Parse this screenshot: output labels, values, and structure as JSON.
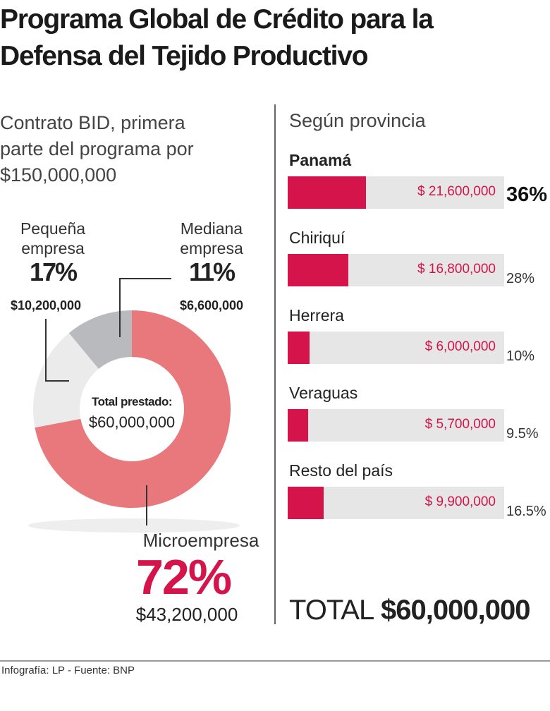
{
  "title": "Programa Global de Crédito para la Defensa del Tejido Productivo",
  "source": "Infografía: LP - Fuente: BNP",
  "chart_data": [
    {
      "type": "pie",
      "subtitle": "Contrato BID, primera parte del programa por $150,000,000",
      "categories": [
        "Microempresa",
        "Pequeña empresa",
        "Mediana empresa"
      ],
      "values": [
        72,
        17,
        11
      ],
      "value_labels": [
        "72%",
        "17%",
        "11%"
      ],
      "amounts": [
        43200000,
        10200000,
        6600000
      ],
      "amount_labels": [
        "$43,200,000",
        "$10,200,000",
        "$6,600,000"
      ],
      "colors": [
        "#e8787c",
        "#ebebeb",
        "#b9babe"
      ],
      "center_title": "Total prestado:",
      "center_text": "$60,000,000"
    },
    {
      "type": "bar",
      "title": "Según provincia",
      "categories": [
        "Panamá",
        "Chiriquí",
        "Herrera",
        "Veraguas",
        "Resto del país"
      ],
      "values": [
        21600000,
        16800000,
        6000000,
        5700000,
        9900000
      ],
      "value_labels": [
        "$ 21,600,000",
        "$ 16,800,000",
        "$ 6,000,000",
        "$ 5,700,000",
        "$ 9,900,000"
      ],
      "percents": [
        36,
        28,
        10,
        9.5,
        16.5
      ],
      "percent_labels": [
        "36%",
        "28%",
        "10%",
        "9.5%",
        "16.5%"
      ],
      "color": "#d4144a",
      "xlim": [
        0,
        60000000
      ],
      "total_label": "TOTAL",
      "total_text": "$60,000,000"
    }
  ]
}
